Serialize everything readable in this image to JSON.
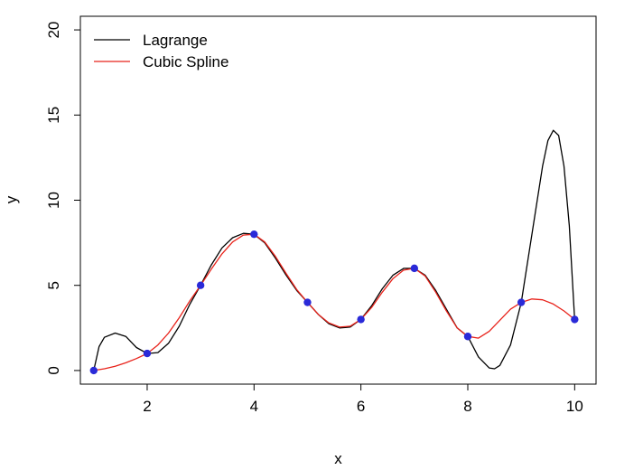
{
  "chart_data": {
    "type": "line",
    "xlabel": "x",
    "ylabel": "y",
    "xlim": [
      0.75,
      10.4
    ],
    "ylim": [
      -0.8,
      20.8
    ],
    "x_ticks": [
      2,
      4,
      6,
      8,
      10
    ],
    "y_ticks": [
      0,
      5,
      10,
      15,
      20
    ],
    "grid": false,
    "legend_position": "top-left",
    "points": {
      "color": "#2a2ad8",
      "x": [
        1,
        2,
        3,
        4,
        5,
        6,
        7,
        8,
        9,
        10
      ],
      "y": [
        0,
        1,
        5,
        8,
        4,
        3,
        6,
        2,
        4,
        3
      ]
    },
    "series": [
      {
        "name": "Lagrange",
        "color": "#000000",
        "x": [
          1.0,
          1.1,
          1.2,
          1.4,
          1.6,
          1.8,
          2.0,
          2.2,
          2.4,
          2.6,
          2.8,
          3.0,
          3.2,
          3.4,
          3.6,
          3.8,
          4.0,
          4.2,
          4.4,
          4.6,
          4.8,
          5.0,
          5.2,
          5.4,
          5.6,
          5.8,
          6.0,
          6.2,
          6.4,
          6.6,
          6.8,
          7.0,
          7.2,
          7.4,
          7.6,
          7.8,
          8.0,
          8.2,
          8.4,
          8.5,
          8.6,
          8.8,
          9.0,
          9.2,
          9.4,
          9.5,
          9.6,
          9.7,
          9.8,
          9.9,
          10.0
        ],
        "y": [
          0,
          1.4,
          1.95,
          2.2,
          2.0,
          1.35,
          1.0,
          1.05,
          1.6,
          2.6,
          3.9,
          5.0,
          6.2,
          7.2,
          7.8,
          8.05,
          8.0,
          7.5,
          6.6,
          5.6,
          4.7,
          4.0,
          3.3,
          2.75,
          2.5,
          2.55,
          3.0,
          3.8,
          4.8,
          5.6,
          6.0,
          6.0,
          5.6,
          4.7,
          3.6,
          2.5,
          2.0,
          0.8,
          0.15,
          0.1,
          0.3,
          1.5,
          4.0,
          8.0,
          12.0,
          13.5,
          14.1,
          13.8,
          12.0,
          8.5,
          3.0
        ]
      },
      {
        "name": "Cubic Spline",
        "color": "#e8231b",
        "x": [
          1.0,
          1.2,
          1.4,
          1.6,
          1.8,
          2.0,
          2.2,
          2.4,
          2.6,
          2.8,
          3.0,
          3.2,
          3.4,
          3.6,
          3.8,
          4.0,
          4.2,
          4.4,
          4.6,
          4.8,
          5.0,
          5.2,
          5.4,
          5.6,
          5.8,
          6.0,
          6.2,
          6.4,
          6.6,
          6.8,
          7.0,
          7.2,
          7.4,
          7.6,
          7.8,
          8.0,
          8.2,
          8.4,
          8.6,
          8.8,
          9.0,
          9.2,
          9.4,
          9.6,
          9.8,
          10.0
        ],
        "y": [
          0,
          0.1,
          0.25,
          0.45,
          0.7,
          1.0,
          1.5,
          2.2,
          3.1,
          4.1,
          5.0,
          5.95,
          6.85,
          7.55,
          7.95,
          8.0,
          7.55,
          6.7,
          5.7,
          4.75,
          4.0,
          3.3,
          2.8,
          2.55,
          2.6,
          3.0,
          3.7,
          4.6,
          5.4,
          5.9,
          6.0,
          5.55,
          4.6,
          3.5,
          2.5,
          2.0,
          1.9,
          2.3,
          2.95,
          3.6,
          4.0,
          4.2,
          4.15,
          3.9,
          3.5,
          3.0
        ]
      }
    ]
  }
}
